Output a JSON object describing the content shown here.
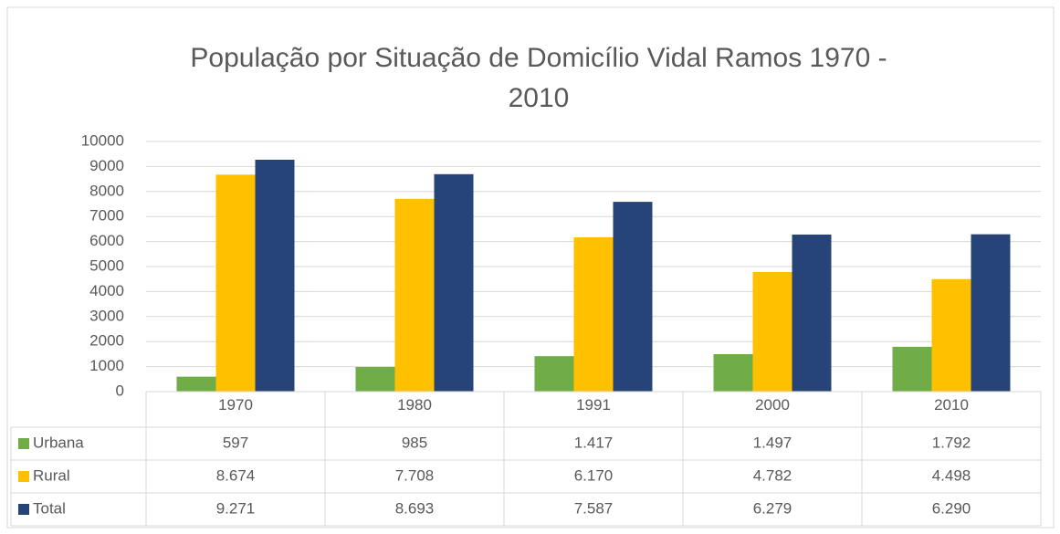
{
  "chart_data": {
    "type": "bar",
    "title": "População por Situação de Domicílio Vidal Ramos 1970 - 2010",
    "categories": [
      "1970",
      "1980",
      "1991",
      "2000",
      "2010"
    ],
    "series": [
      {
        "name": "Urbana",
        "color": "#70ad47",
        "values": [
          597,
          985,
          1417,
          1497,
          1792
        ],
        "value_labels": [
          "597",
          "985",
          "1.417",
          "1.497",
          "1.792"
        ]
      },
      {
        "name": "Rural",
        "color": "#ffc000",
        "values": [
          8674,
          7708,
          6170,
          4782,
          4498
        ],
        "value_labels": [
          "8.674",
          "7.708",
          "6.170",
          "4.782",
          "4.498"
        ]
      },
      {
        "name": "Total",
        "color": "#264478",
        "values": [
          9271,
          8693,
          7587,
          6279,
          6290
        ],
        "value_labels": [
          "9.271",
          "8.693",
          "7.587",
          "6.279",
          "6.290"
        ]
      }
    ],
    "ylim": [
      0,
      10000
    ],
    "yticks": [
      0,
      1000,
      2000,
      3000,
      4000,
      5000,
      6000,
      7000,
      8000,
      9000,
      10000
    ],
    "grid": true
  }
}
